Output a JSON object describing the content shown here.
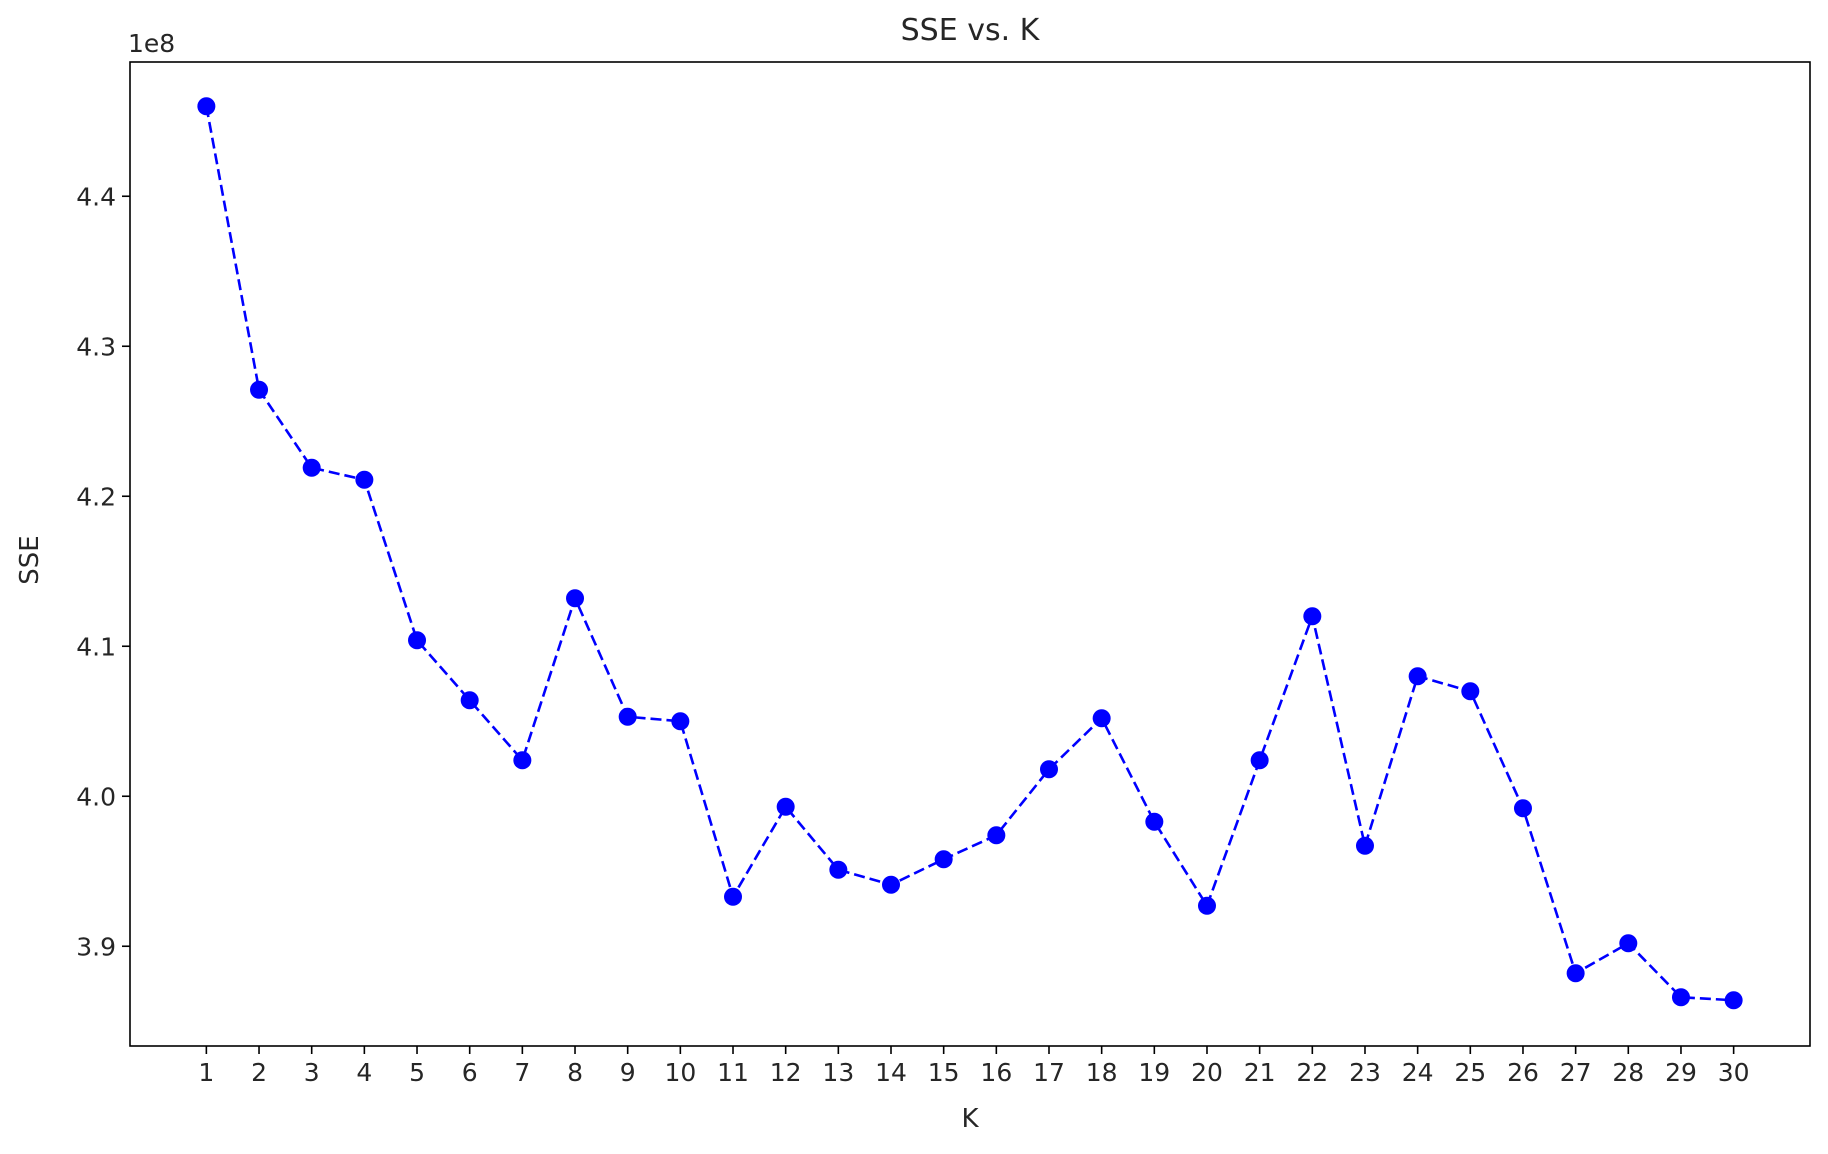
{
  "chart_data": {
    "type": "line",
    "title": "SSE vs. K",
    "xlabel": "K",
    "ylabel": "SSE",
    "y_exponent_label": "1e8",
    "x": [
      1,
      2,
      3,
      4,
      5,
      6,
      7,
      8,
      9,
      10,
      11,
      12,
      13,
      14,
      15,
      16,
      17,
      18,
      19,
      20,
      21,
      22,
      23,
      24,
      25,
      26,
      27,
      28,
      29,
      30
    ],
    "series": [
      {
        "values": [
          4.46,
          4.271,
          4.219,
          4.211,
          4.104,
          4.064,
          4.024,
          4.132,
          4.053,
          4.05,
          3.933,
          3.993,
          3.951,
          3.941,
          3.958,
          3.974,
          4.018,
          4.052,
          3.983,
          3.927,
          4.024,
          4.12,
          3.967,
          4.08,
          4.07,
          3.992,
          3.882,
          3.902,
          3.866,
          3.864
        ],
        "color": "#0000ff",
        "linestyle": "dashed",
        "marker": "circle"
      }
    ],
    "xticks": [
      "1",
      "2",
      "3",
      "4",
      "5",
      "6",
      "7",
      "8",
      "9",
      "10",
      "11",
      "12",
      "13",
      "14",
      "15",
      "16",
      "17",
      "18",
      "19",
      "20",
      "21",
      "22",
      "23",
      "24",
      "25",
      "26",
      "27",
      "28",
      "29",
      "30"
    ],
    "yticks": [
      3.9,
      4.0,
      4.1,
      4.2,
      4.3,
      4.4
    ],
    "ytick_labels": [
      "3.9",
      "4.0",
      "4.1",
      "4.2",
      "4.3",
      "4.4"
    ],
    "xlim": [
      -0.45,
      31.45
    ],
    "ylim": [
      3.8335,
      4.4895
    ],
    "grid": false,
    "legend": "none"
  }
}
